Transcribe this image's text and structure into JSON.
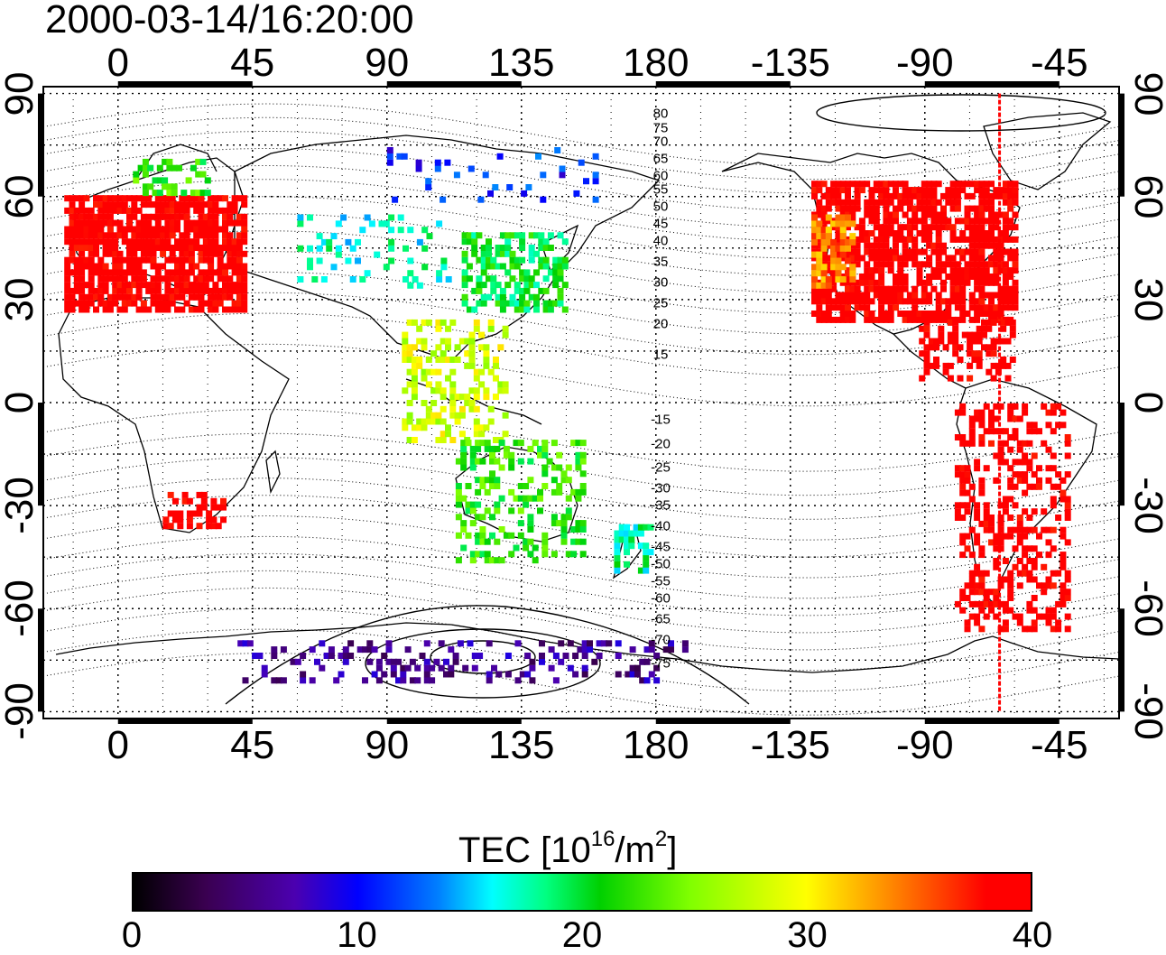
{
  "timestamp": "2000-03-14/16:20:00",
  "map": {
    "lon_range": [
      -25,
      335
    ],
    "lat_range": [
      -92,
      92
    ],
    "x_ticks": [
      {
        "lon": 0,
        "label": "0"
      },
      {
        "lon": 45,
        "label": "45"
      },
      {
        "lon": 90,
        "label": "90"
      },
      {
        "lon": 135,
        "label": "135"
      },
      {
        "lon": 180,
        "label": "180"
      },
      {
        "lon": 225,
        "label": "-135"
      },
      {
        "lon": 270,
        "label": "-90"
      },
      {
        "lon": 315,
        "label": "-45"
      }
    ],
    "y_ticks": [
      {
        "lat": 90,
        "label": "90"
      },
      {
        "lat": 60,
        "label": "60"
      },
      {
        "lat": 30,
        "label": "30"
      },
      {
        "lat": 0,
        "label": "0"
      },
      {
        "lat": -30,
        "label": "-30"
      },
      {
        "lat": -60,
        "label": "-60"
      },
      {
        "lat": -90,
        "label": "-90"
      }
    ],
    "gridlines": "dotted",
    "marker_line": {
      "lon": 295,
      "color": "#ff0000"
    },
    "mlat_labels": [
      {
        "value": "80",
        "lat": 84
      },
      {
        "value": "75",
        "lat": 80
      },
      {
        "value": "70",
        "lat": 76
      },
      {
        "value": "65",
        "lat": 71
      },
      {
        "value": "60",
        "lat": 66
      },
      {
        "value": "55",
        "lat": 62
      },
      {
        "value": "50",
        "lat": 57
      },
      {
        "value": "45",
        "lat": 52
      },
      {
        "value": "40",
        "lat": 47
      },
      {
        "value": "35",
        "lat": 41
      },
      {
        "value": "30",
        "lat": 35
      },
      {
        "value": "25",
        "lat": 29
      },
      {
        "value": "20",
        "lat": 23
      },
      {
        "value": "15",
        "lat": 14
      },
      {
        "value": "-15",
        "lat": -5
      },
      {
        "value": "-20",
        "lat": -12
      },
      {
        "value": "-25",
        "lat": -19
      },
      {
        "value": "-30",
        "lat": -25
      },
      {
        "value": "-35",
        "lat": -30
      },
      {
        "value": "-40",
        "lat": -36
      },
      {
        "value": "-45",
        "lat": -42
      },
      {
        "value": "-50",
        "lat": -47
      },
      {
        "value": "-55",
        "lat": -52
      },
      {
        "value": "-60",
        "lat": -57
      },
      {
        "value": "-65",
        "lat": -63
      },
      {
        "value": "-70",
        "lat": -69
      },
      {
        "value": "-75",
        "lat": -76
      }
    ]
  },
  "tec_regions": [
    {
      "name": "Europe",
      "lon": [
        -18,
        42
      ],
      "lat": [
        28,
        62
      ],
      "tec": 40,
      "density": 0.8
    },
    {
      "name": "Scandinavia",
      "lon": [
        5,
        30
      ],
      "lat": [
        62,
        72
      ],
      "tec": 22,
      "density": 0.4
    },
    {
      "name": "North America",
      "lon": [
        232,
        300
      ],
      "lat": [
        25,
        65
      ],
      "tec": 40,
      "density": 0.75
    },
    {
      "name": "Western USA",
      "lon": [
        232,
        245
      ],
      "lat": [
        35,
        55
      ],
      "tec": 34,
      "density": 0.6
    },
    {
      "name": "Caribbean and Central America",
      "lon": [
        268,
        300
      ],
      "lat": [
        8,
        25
      ],
      "tec": 40,
      "density": 0.45
    },
    {
      "name": "South America",
      "lon": [
        280,
        318
      ],
      "lat": [
        -65,
        0
      ],
      "tec": 40,
      "density": 0.35
    },
    {
      "name": "Japan and East Asia",
      "lon": [
        115,
        150
      ],
      "lat": [
        28,
        50
      ],
      "tec": 20,
      "density": 0.55
    },
    {
      "name": "Southeast Asia",
      "lon": [
        95,
        130
      ],
      "lat": [
        -10,
        25
      ],
      "tec": 28,
      "density": 0.35
    },
    {
      "name": "Australia",
      "lon": [
        113,
        155
      ],
      "lat": [
        -45,
        -10
      ],
      "tec": 22,
      "density": 0.3
    },
    {
      "name": "New Zealand",
      "lon": [
        166,
        178
      ],
      "lat": [
        -48,
        -34
      ],
      "tec": 18,
      "density": 0.5
    },
    {
      "name": "Asia",
      "lon": [
        60,
        110
      ],
      "lat": [
        35,
        55
      ],
      "tec": 17,
      "density": 0.15
    },
    {
      "name": "Siberia",
      "lon": [
        90,
        160
      ],
      "lat": [
        60,
        75
      ],
      "tec": 11,
      "density": 0.12
    },
    {
      "name": "Antarctica",
      "lon": [
        40,
        190
      ],
      "lat": [
        -80,
        -68
      ],
      "tec": 6,
      "density": 0.25
    },
    {
      "name": "Southern Africa",
      "lon": [
        15,
        35
      ],
      "lat": [
        -35,
        -25
      ],
      "tec": 40,
      "density": 0.4
    }
  ],
  "colorbar": {
    "title_prefix": "TEC  [10",
    "title_exp1": "16",
    "title_mid": "/m",
    "title_exp2": "2",
    "title_suffix": "]",
    "min": 0,
    "max": 40,
    "ticks": [
      {
        "value": 0,
        "label": "0"
      },
      {
        "value": 10,
        "label": "10"
      },
      {
        "value": 20,
        "label": "20"
      },
      {
        "value": 30,
        "label": "30"
      },
      {
        "value": 40,
        "label": "40"
      }
    ]
  }
}
